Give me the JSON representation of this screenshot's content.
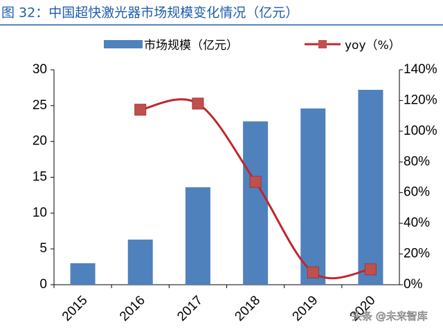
{
  "chart_data": {
    "type": "bar_line",
    "title": "图 32：中国超快激光器市场规模变化情况（亿元）",
    "categories": [
      "2015",
      "2016",
      "2017",
      "2018",
      "2019",
      "2020"
    ],
    "series": [
      {
        "name": "市场规模（亿元）",
        "type": "bar",
        "color": "#4f81bd",
        "values": [
          3.0,
          6.3,
          13.6,
          22.8,
          24.6,
          27.2
        ]
      },
      {
        "name": "yoy（%）",
        "type": "line",
        "axis": "y2",
        "color": "#c0262c",
        "values": [
          null,
          114,
          118,
          67,
          8,
          10
        ]
      }
    ],
    "ylim": [
      0,
      30
    ],
    "yticks": [
      0,
      5,
      10,
      15,
      20,
      25,
      30
    ],
    "y2lim": [
      0,
      140
    ],
    "y2ticks": [
      {
        "value": 0,
        "label": "0%"
      },
      {
        "value": 20,
        "label": "20%"
      },
      {
        "value": 40,
        "label": "40%"
      },
      {
        "value": 60,
        "label": "60%"
      },
      {
        "value": 80,
        "label": "80%"
      },
      {
        "value": 100,
        "label": "100%"
      },
      {
        "value": 120,
        "label": "120%"
      },
      {
        "value": 140,
        "label": "140%"
      }
    ],
    "watermark": "头条 @未来智库"
  }
}
